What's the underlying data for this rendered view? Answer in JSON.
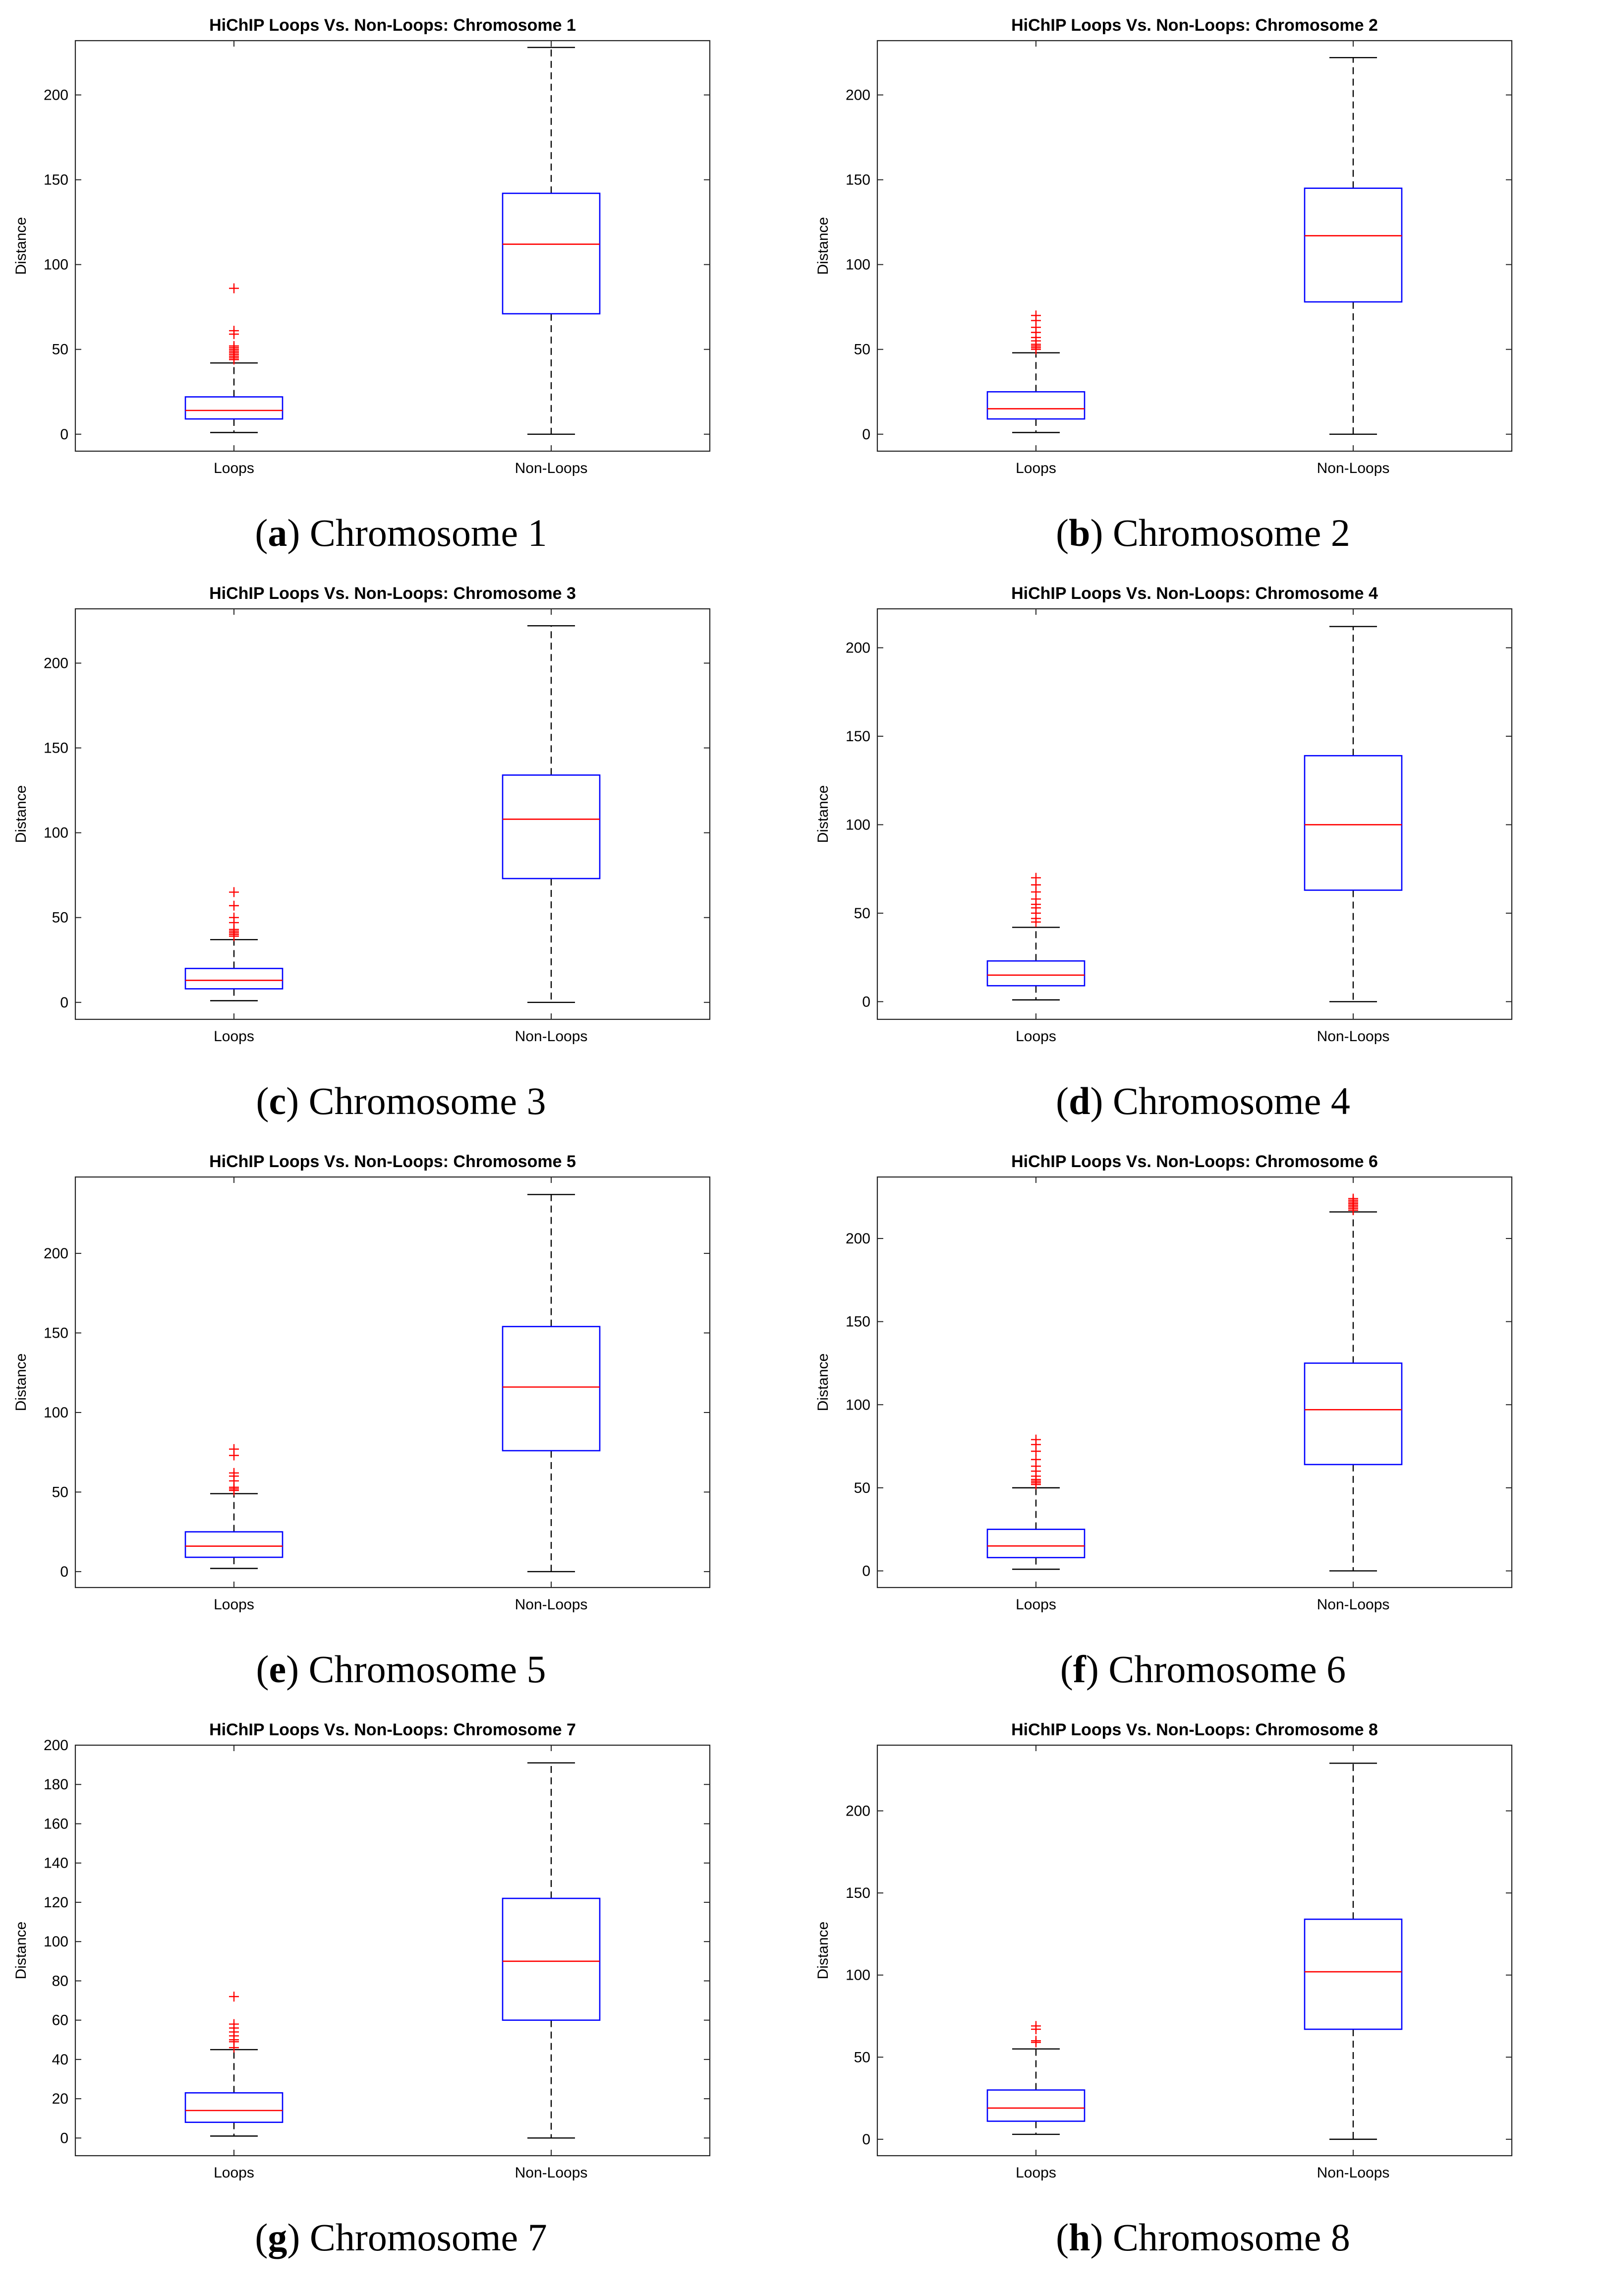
{
  "figure": {
    "colors": {
      "box": "#0000ff",
      "median": "#ff0000",
      "whisker": "#000000",
      "outlier": "#ff0000",
      "axis": "#262626",
      "text": "#000000"
    }
  },
  "chart_data": [
    {
      "type": "box",
      "panel_letter": "a",
      "caption": "Chromosome 1",
      "title": "HiChIP Loops Vs. Non-Loops: Chromosome 1",
      "xlabel": "",
      "ylabel": "Distance",
      "ylim": [
        -10,
        232
      ],
      "yticks": [
        0,
        50,
        100,
        150,
        200
      ],
      "categories": [
        "Loops",
        "Non-Loops"
      ],
      "boxes": [
        {
          "name": "Loops",
          "min": 1,
          "q1": 9,
          "median": 14,
          "q3": 22,
          "max": 42,
          "outliers": [
            44,
            45,
            46,
            47,
            48,
            49,
            50,
            51,
            52,
            59,
            61,
            86
          ]
        },
        {
          "name": "Non-Loops",
          "min": 0,
          "q1": 71,
          "median": 112,
          "q3": 142,
          "max": 228,
          "outliers": []
        }
      ]
    },
    {
      "type": "box",
      "panel_letter": "b",
      "caption": "Chromosome 2",
      "title": "HiChIP Loops Vs. Non-Loops: Chromosome 2",
      "xlabel": "",
      "ylabel": "Distance",
      "ylim": [
        -10,
        232
      ],
      "yticks": [
        0,
        50,
        100,
        150,
        200
      ],
      "categories": [
        "Loops",
        "Non-Loops"
      ],
      "boxes": [
        {
          "name": "Loops",
          "min": 1,
          "q1": 9,
          "median": 15,
          "q3": 25,
          "max": 48,
          "outliers": [
            50,
            51,
            52,
            53,
            55,
            57,
            60,
            63,
            67,
            70
          ]
        },
        {
          "name": "Non-Loops",
          "min": 0,
          "q1": 78,
          "median": 117,
          "q3": 145,
          "max": 222,
          "outliers": []
        }
      ]
    },
    {
      "type": "box",
      "panel_letter": "c",
      "caption": "Chromosome 3",
      "title": "HiChIP Loops Vs. Non-Loops: Chromosome 3",
      "xlabel": "",
      "ylabel": "Distance",
      "ylim": [
        -10,
        232
      ],
      "yticks": [
        0,
        50,
        100,
        150,
        200
      ],
      "categories": [
        "Loops",
        "Non-Loops"
      ],
      "boxes": [
        {
          "name": "Loops",
          "min": 1,
          "q1": 8,
          "median": 13,
          "q3": 20,
          "max": 37,
          "outliers": [
            39,
            40,
            41,
            42,
            43,
            47,
            50,
            57,
            65
          ]
        },
        {
          "name": "Non-Loops",
          "min": 0,
          "q1": 73,
          "median": 108,
          "q3": 134,
          "max": 222,
          "outliers": []
        }
      ]
    },
    {
      "type": "box",
      "panel_letter": "d",
      "caption": "Chromosome 4",
      "title": "HiChIP Loops Vs. Non-Loops: Chromosome 4",
      "xlabel": "",
      "ylabel": "Distance",
      "ylim": [
        -10,
        222
      ],
      "yticks": [
        0,
        50,
        100,
        150,
        200
      ],
      "categories": [
        "Loops",
        "Non-Loops"
      ],
      "boxes": [
        {
          "name": "Loops",
          "min": 1,
          "q1": 9,
          "median": 15,
          "q3": 23,
          "max": 42,
          "outliers": [
            45,
            47,
            50,
            53,
            55,
            58,
            62,
            66,
            70
          ]
        },
        {
          "name": "Non-Loops",
          "min": 0,
          "q1": 63,
          "median": 100,
          "q3": 139,
          "max": 212,
          "outliers": []
        }
      ]
    },
    {
      "type": "box",
      "panel_letter": "e",
      "caption": "Chromosome 5",
      "title": "HiChIP Loops Vs. Non-Loops: Chromosome 5",
      "xlabel": "",
      "ylabel": "Distance",
      "ylim": [
        -10,
        248
      ],
      "yticks": [
        0,
        50,
        100,
        150,
        200
      ],
      "categories": [
        "Loops",
        "Non-Loops"
      ],
      "boxes": [
        {
          "name": "Loops",
          "min": 2,
          "q1": 9,
          "median": 16,
          "q3": 25,
          "max": 49,
          "outliers": [
            51,
            52,
            53,
            57,
            60,
            62,
            73,
            77
          ]
        },
        {
          "name": "Non-Loops",
          "min": 0,
          "q1": 76,
          "median": 116,
          "q3": 154,
          "max": 237,
          "outliers": []
        }
      ]
    },
    {
      "type": "box",
      "panel_letter": "f",
      "caption": "Chromosome 6",
      "title": "HiChIP Loops Vs. Non-Loops: Chromosome 6",
      "xlabel": "",
      "ylabel": "Distance",
      "ylim": [
        -10,
        237
      ],
      "yticks": [
        0,
        50,
        100,
        150,
        200
      ],
      "categories": [
        "Loops",
        "Non-Loops"
      ],
      "boxes": [
        {
          "name": "Loops",
          "min": 1,
          "q1": 8,
          "median": 15,
          "q3": 25,
          "max": 50,
          "outliers": [
            52,
            53,
            54,
            55,
            57,
            60,
            63,
            67,
            72,
            76,
            79
          ]
        },
        {
          "name": "Non-Loops",
          "min": 0,
          "q1": 64,
          "median": 97,
          "q3": 125,
          "max": 216,
          "outliers": [
            217,
            218,
            219,
            220,
            221,
            222,
            223,
            224
          ]
        }
      ]
    },
    {
      "type": "box",
      "panel_letter": "g",
      "caption": "Chromosome 7",
      "title": "HiChIP Loops Vs. Non-Loops: Chromosome 7",
      "xlabel": "",
      "ylabel": "Distance",
      "ylim": [
        -9,
        200
      ],
      "yticks": [
        0,
        20,
        40,
        60,
        80,
        100,
        120,
        140,
        160,
        180,
        200
      ],
      "categories": [
        "Loops",
        "Non-Loops"
      ],
      "boxes": [
        {
          "name": "Loops",
          "min": 1,
          "q1": 8,
          "median": 14,
          "q3": 23,
          "max": 45,
          "outliers": [
            46,
            49,
            50,
            52,
            54,
            56,
            58,
            72
          ]
        },
        {
          "name": "Non-Loops",
          "min": 0,
          "q1": 60,
          "median": 90,
          "q3": 122,
          "max": 191,
          "outliers": []
        }
      ]
    },
    {
      "type": "box",
      "panel_letter": "h",
      "caption": "Chromosome 8",
      "title": "HiChIP Loops Vs. Non-Loops: Chromosome 8",
      "xlabel": "",
      "ylabel": "Distance",
      "ylim": [
        -10,
        240
      ],
      "yticks": [
        0,
        50,
        100,
        150,
        200
      ],
      "categories": [
        "Loops",
        "Non-Loops"
      ],
      "boxes": [
        {
          "name": "Loops",
          "min": 3,
          "q1": 11,
          "median": 19,
          "q3": 30,
          "max": 55,
          "outliers": [
            59,
            60,
            67,
            69
          ]
        },
        {
          "name": "Non-Loops",
          "min": 0,
          "q1": 67,
          "median": 102,
          "q3": 134,
          "max": 229,
          "outliers": []
        }
      ]
    }
  ]
}
